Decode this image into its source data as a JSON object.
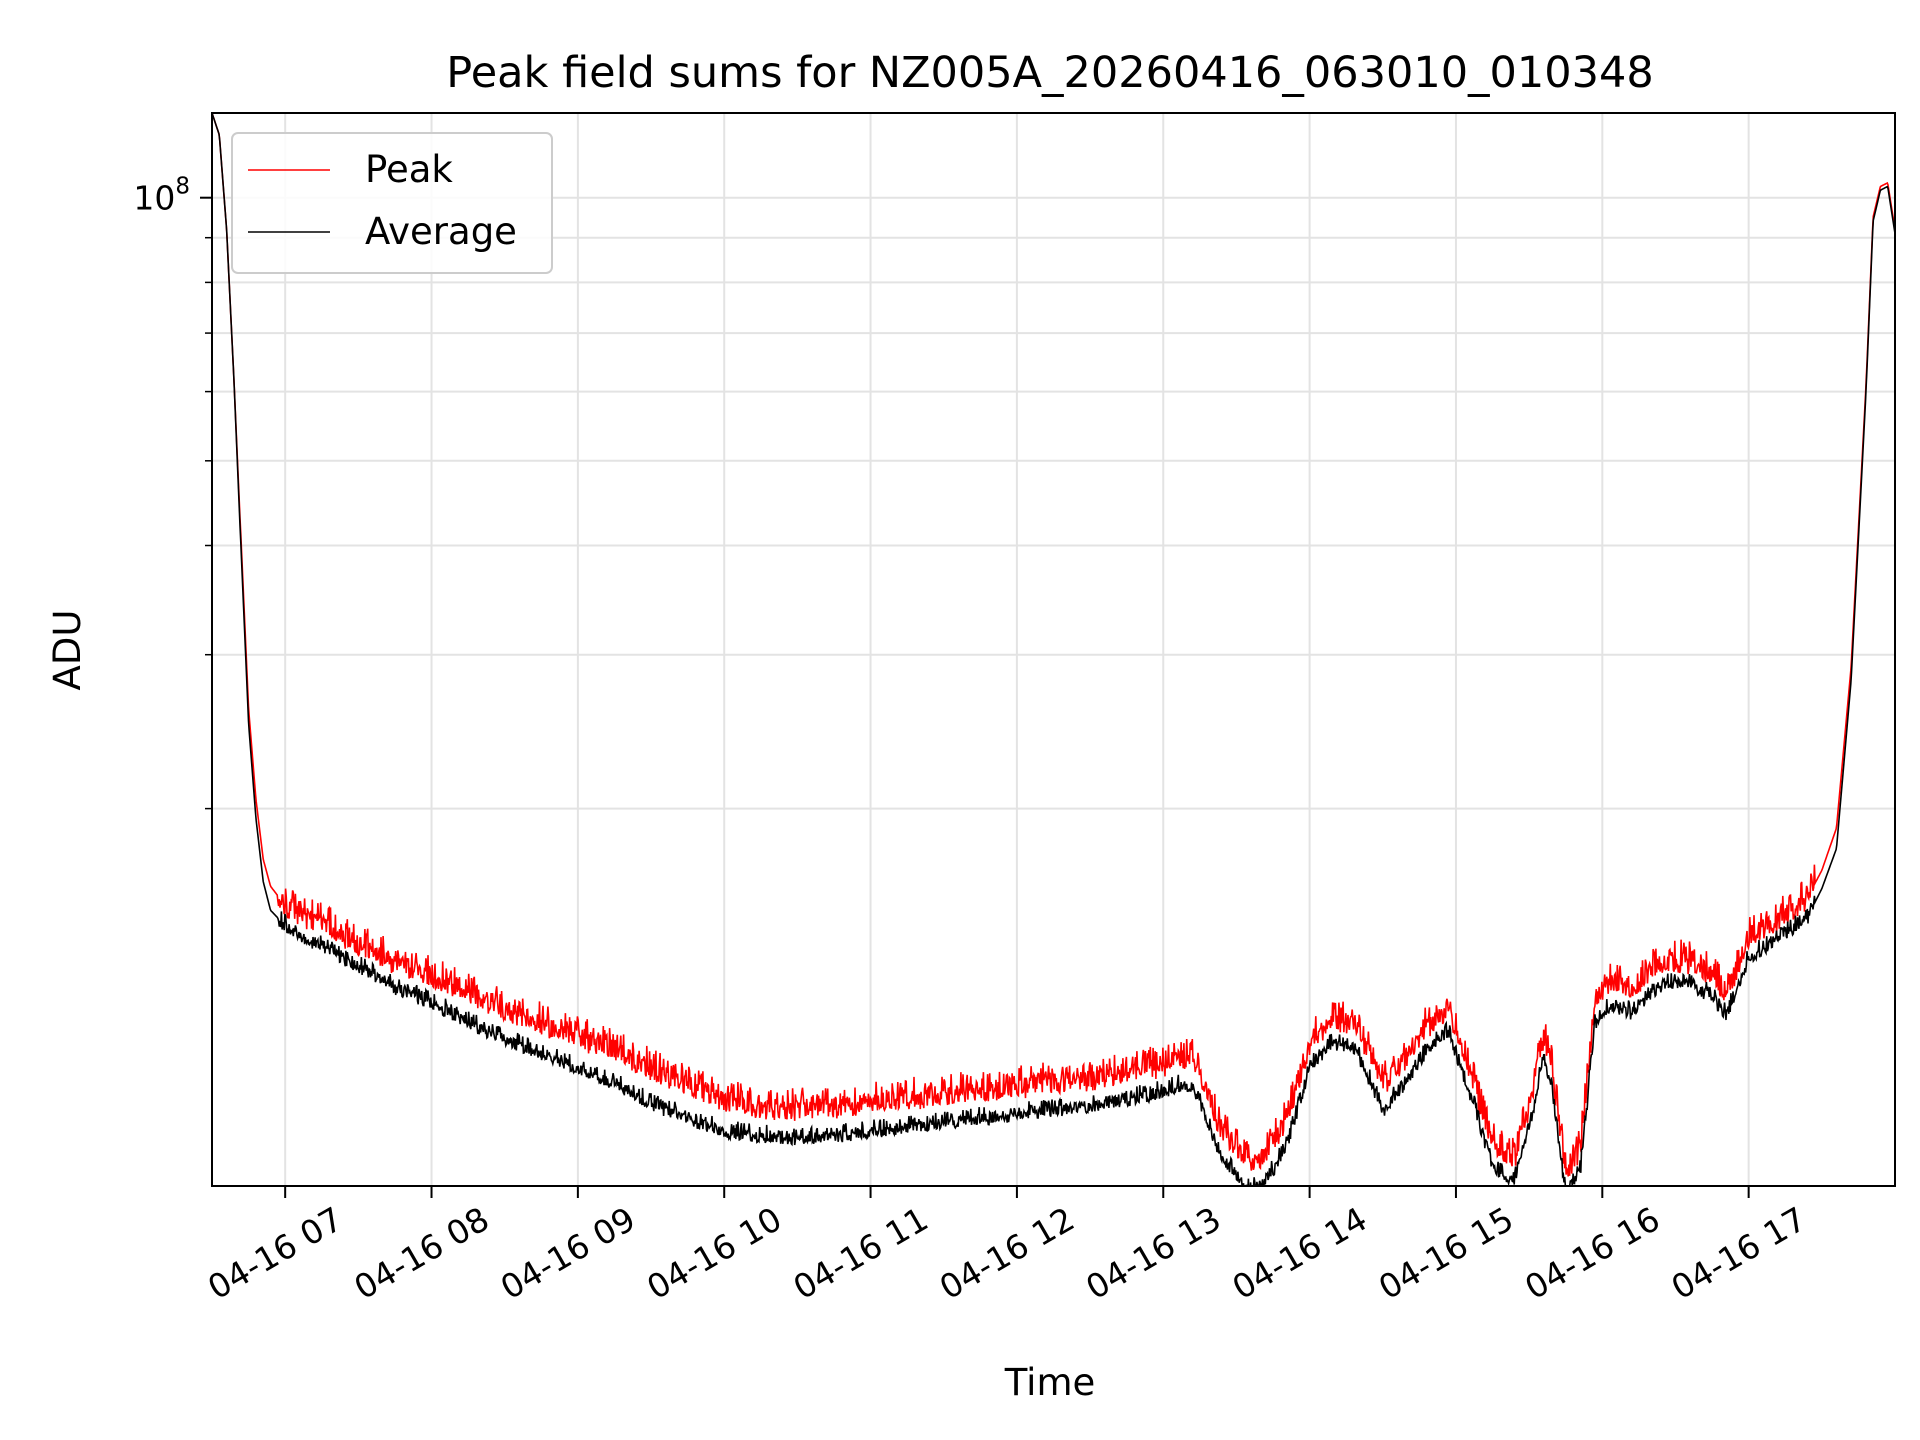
{
  "chart_data": {
    "type": "line",
    "title": "Peak field sums for NZ005A_20260416_063010_010348",
    "xlabel": "Time",
    "ylabel": "ADU",
    "yscale": "log",
    "xlim": [
      6.5,
      18.0
    ],
    "ylim": [
      7400000,
      125000000
    ],
    "grid": true,
    "x_ticks": [
      {
        "value": 7,
        "label": "04-16 07"
      },
      {
        "value": 8,
        "label": "04-16 08"
      },
      {
        "value": 9,
        "label": "04-16 09"
      },
      {
        "value": 10,
        "label": "04-16 10"
      },
      {
        "value": 11,
        "label": "04-16 11"
      },
      {
        "value": 12,
        "label": "04-16 12"
      },
      {
        "value": 13,
        "label": "04-16 13"
      },
      {
        "value": 14,
        "label": "04-16 14"
      },
      {
        "value": 15,
        "label": "04-16 15"
      },
      {
        "value": 16,
        "label": "04-16 16"
      },
      {
        "value": 17,
        "label": "04-16 17"
      }
    ],
    "y_major_ticks": [
      {
        "value": 100000000,
        "base": "10",
        "exp": "8"
      }
    ],
    "y_minor_ticks": [
      20000000,
      30000000,
      40000000,
      50000000,
      60000000,
      70000000,
      80000000,
      90000000
    ],
    "legend": {
      "position": "top-left"
    },
    "series": [
      {
        "name": "Peak",
        "color": "#ff0000",
        "x": [
          6.5,
          6.55,
          6.6,
          6.65,
          6.7,
          6.75,
          6.8,
          6.85,
          6.9,
          7.0,
          7.1,
          7.3,
          7.5,
          7.75,
          8.0,
          8.25,
          8.5,
          8.75,
          9.0,
          9.25,
          9.5,
          9.75,
          10.0,
          10.25,
          10.5,
          10.75,
          11.0,
          11.25,
          11.5,
          11.75,
          12.0,
          12.25,
          12.5,
          12.75,
          13.0,
          13.1,
          13.2,
          13.4,
          13.6,
          13.75,
          13.85,
          14.0,
          14.15,
          14.3,
          14.4,
          14.5,
          14.65,
          14.8,
          14.95,
          15.1,
          15.25,
          15.4,
          15.5,
          15.6,
          15.65,
          15.75,
          15.85,
          15.95,
          16.05,
          16.2,
          16.35,
          16.45,
          16.6,
          16.75,
          16.85,
          17.0,
          17.2,
          17.4,
          17.5,
          17.6,
          17.7,
          17.8,
          17.85,
          17.9,
          17.95,
          18.0
        ],
        "y": [
          125000000,
          118000000,
          92000000,
          62000000,
          40000000,
          26000000,
          20500000,
          17500000,
          16300000,
          15500000,
          15200000,
          14700000,
          14000000,
          13400000,
          12900000,
          12300000,
          11800000,
          11400000,
          11000000,
          10600000,
          10100000,
          9700000,
          9300000,
          9150000,
          9100000,
          9150000,
          9250000,
          9350000,
          9450000,
          9550000,
          9650000,
          9750000,
          9850000,
          10000000,
          10200000,
          10350000,
          10400000,
          8600000,
          7800000,
          8300000,
          8900000,
          10800000,
          11500000,
          11400000,
          10600000,
          9700000,
          10400000,
          11300000,
          11800000,
          10000000,
          8300000,
          8000000,
          9200000,
          11000000,
          10300000,
          7700000,
          8200000,
          12200000,
          12700000,
          12500000,
          13200000,
          13500000,
          13400000,
          13000000,
          12300000,
          14300000,
          15000000,
          15800000,
          17000000,
          19000000,
          29000000,
          60000000,
          95000000,
          103000000,
          104000000,
          92000000
        ]
      },
      {
        "name": "Average",
        "color": "#000000",
        "x": [
          6.5,
          6.55,
          6.6,
          6.65,
          6.7,
          6.75,
          6.8,
          6.85,
          6.9,
          7.0,
          7.1,
          7.3,
          7.5,
          7.75,
          8.0,
          8.25,
          8.5,
          8.75,
          9.0,
          9.25,
          9.5,
          9.75,
          10.0,
          10.25,
          10.5,
          10.75,
          11.0,
          11.25,
          11.5,
          11.75,
          12.0,
          12.25,
          12.5,
          12.75,
          13.0,
          13.1,
          13.2,
          13.4,
          13.6,
          13.75,
          13.85,
          14.0,
          14.15,
          14.3,
          14.4,
          14.5,
          14.65,
          14.8,
          14.95,
          15.1,
          15.25,
          15.4,
          15.5,
          15.6,
          15.65,
          15.75,
          15.85,
          15.95,
          16.05,
          16.2,
          16.35,
          16.45,
          16.6,
          16.75,
          16.85,
          17.0,
          17.2,
          17.4,
          17.5,
          17.6,
          17.7,
          17.8,
          17.85,
          17.9,
          17.95,
          18.0
        ],
        "y": [
          125000000,
          118000000,
          92000000,
          62000000,
          39000000,
          25000000,
          19500000,
          16500000,
          15300000,
          14700000,
          14300000,
          13800000,
          13200000,
          12500000,
          12000000,
          11400000,
          10900000,
          10500000,
          10100000,
          9700000,
          9200000,
          8850000,
          8550000,
          8450000,
          8400000,
          8450000,
          8550000,
          8650000,
          8750000,
          8850000,
          8950000,
          9050000,
          9150000,
          9300000,
          9500000,
          9650000,
          9650000,
          8000000,
          7300000,
          7700000,
          8300000,
          10100000,
          10800000,
          10700000,
          9900000,
          9000000,
          9700000,
          10600000,
          11100000,
          9400000,
          7800000,
          7500000,
          8600000,
          10400000,
          9700000,
          7300000,
          7700000,
          11400000,
          11900000,
          11700000,
          12400000,
          12700000,
          12600000,
          12200000,
          11600000,
          13500000,
          14200000,
          15000000,
          16200000,
          18000000,
          28000000,
          59000000,
          94000000,
          102000000,
          103000000,
          91000000
        ]
      }
    ]
  }
}
